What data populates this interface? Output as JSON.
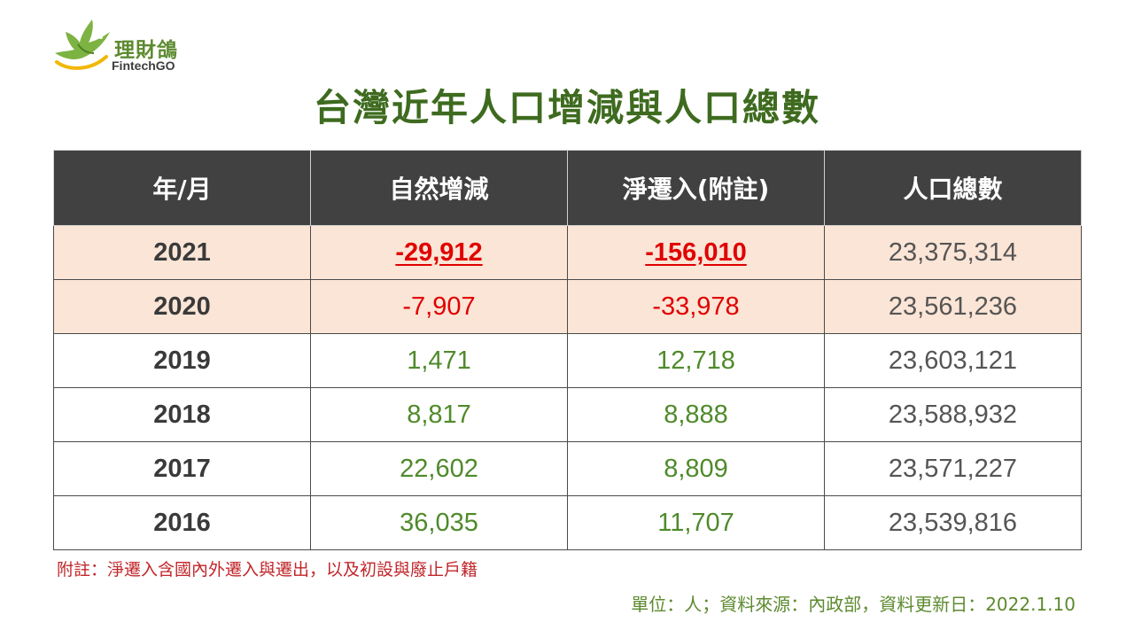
{
  "logo": {
    "name_cn": "理財鴿",
    "name_en": "FintechGO",
    "icon": "dove-icon"
  },
  "title": "台灣近年人口增減與人口總數",
  "table": {
    "headers": [
      "年/月",
      "自然增減",
      "淨遷入(附註)",
      "人口總數"
    ],
    "rows": [
      {
        "year": "2021",
        "natural": "-29,912",
        "migration": "-156,010",
        "total": "23,375,314"
      },
      {
        "year": "2020",
        "natural": "-7,907",
        "migration": "-33,978",
        "total": "23,561,236"
      },
      {
        "year": "2019",
        "natural": "1,471",
        "migration": "12,718",
        "total": "23,603,121"
      },
      {
        "year": "2018",
        "natural": "8,817",
        "migration": "8,888",
        "total": "23,588,932"
      },
      {
        "year": "2017",
        "natural": "22,602",
        "migration": "8,809",
        "total": "23,571,227"
      },
      {
        "year": "2016",
        "natural": "36,035",
        "migration": "11,707",
        "total": "23,539,816"
      }
    ]
  },
  "note": "附註：淨遷入含國內外遷入與遷出，以及初設與廢止戶籍",
  "source": "單位：人；資料來源：內政部，資料更新日：2022.1.10",
  "colors": {
    "title": "#3e6b1f",
    "header_bg": "#414141",
    "highlight_row": "#fbe5d6",
    "negative": "#e00000",
    "positive": "#4f8a2b"
  }
}
